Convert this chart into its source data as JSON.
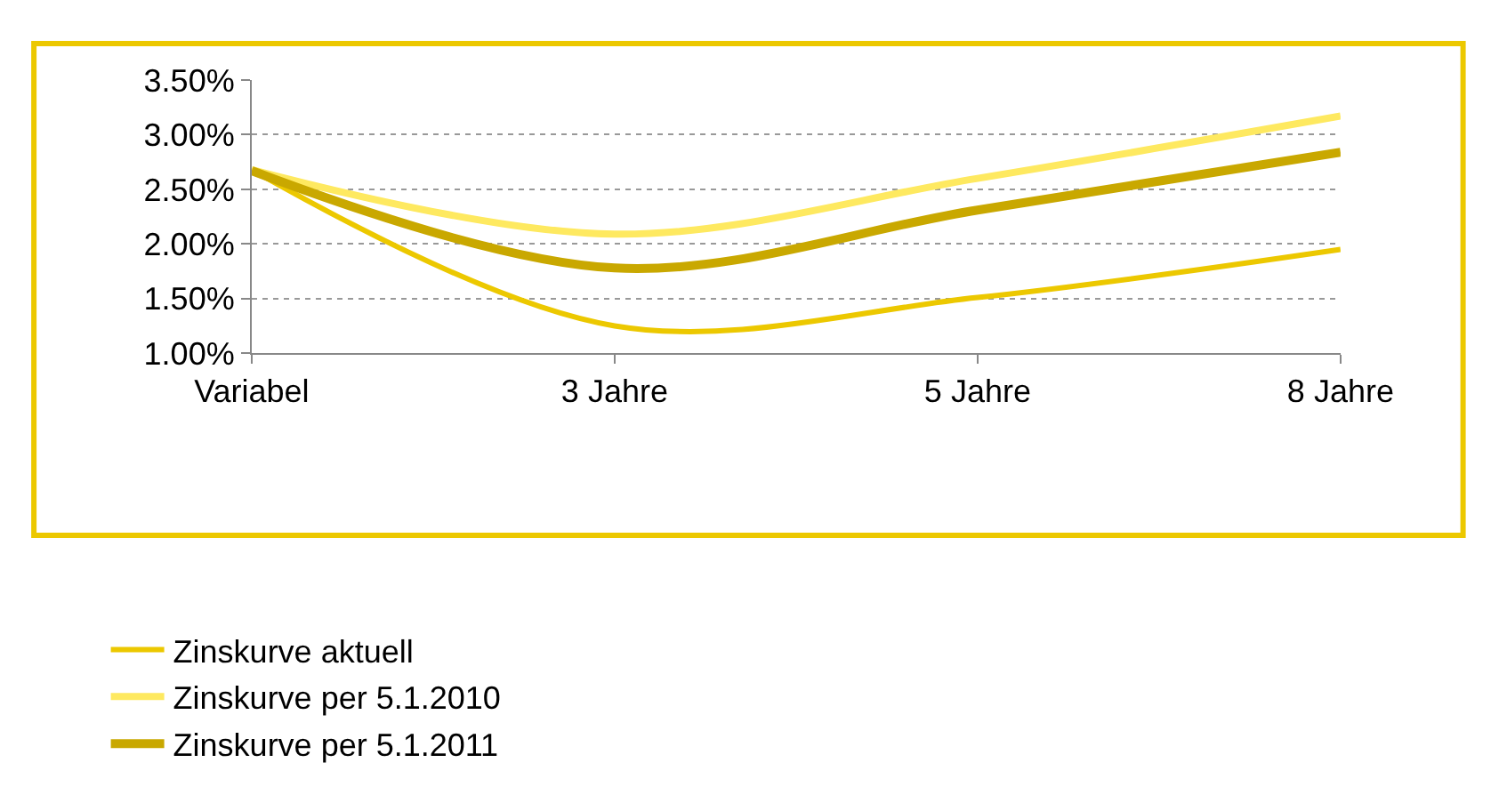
{
  "chart_data": {
    "type": "line",
    "categories": [
      "Variabel",
      "3 Jahre",
      "5 Jahre",
      "8 Jahre"
    ],
    "series": [
      {
        "name": "Zinskurve aktuell",
        "color": "#ecc800",
        "values": [
          2.68,
          1.25,
          1.51,
          1.95
        ]
      },
      {
        "name": "Zinskurve per 5.1.2010",
        "color": "#fee960",
        "values": [
          2.68,
          2.09,
          2.6,
          3.17
        ]
      },
      {
        "name": "Zinskurve per 5.1.2011",
        "color": "#c9a800",
        "values": [
          2.67,
          1.78,
          2.31,
          2.84
        ]
      }
    ],
    "ylim": [
      1.0,
      3.5
    ],
    "yticks": [
      {
        "value": 1.0,
        "label": "1.00%"
      },
      {
        "value": 1.5,
        "label": "1.50%"
      },
      {
        "value": 2.0,
        "label": "2.00%"
      },
      {
        "value": 2.5,
        "label": "2.50%"
      },
      {
        "value": 3.0,
        "label": "3.00%"
      },
      {
        "value": 3.5,
        "label": "3.50%"
      }
    ],
    "grid": "y",
    "legend": "bottom",
    "marker": "none",
    "line_style": "solid"
  }
}
